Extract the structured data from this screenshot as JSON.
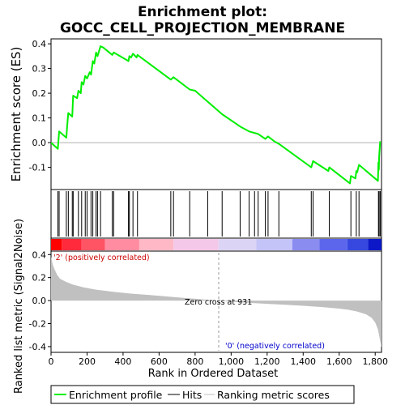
{
  "title_lines": [
    "Enrichment plot:",
    "GOCC_CELL_PROJECTION_MEMBRANE"
  ],
  "labels": {
    "es_ylabel": "Enrichment score (ES)",
    "metric_ylabel": "Ranked list metric (Signal2Noise)",
    "xlabel": "Rank in Ordered Dataset",
    "positive_label": "'2' (positively correlated)",
    "negative_label": "'0' (negatively correlated)",
    "zero_cross": "Zero cross at 931"
  },
  "legend": {
    "enrichment": "Enrichment profile",
    "hits": "Hits",
    "ranking": "Ranking metric scores"
  },
  "colors": {
    "enrichment_line": "#00ee00",
    "hits": "#000000",
    "metric_fill": "#c0c0c0",
    "positive_text": "#cc0000",
    "negative_text": "#0000cc"
  },
  "chart_data": {
    "type": "line",
    "x_ticks": [
      "0",
      "200",
      "400",
      "600",
      "800",
      "1,000",
      "1,200",
      "1,400",
      "1,600",
      "1,800"
    ],
    "x_tick_values": [
      0,
      200,
      400,
      600,
      800,
      1000,
      1200,
      1400,
      1600,
      1800
    ],
    "xlim": [
      0,
      1835
    ],
    "es_yticks": [
      "0.4",
      "0.3",
      "0.2",
      "0.1",
      "0.0",
      "-0.1"
    ],
    "es_ytick_values": [
      0.4,
      0.3,
      0.2,
      0.1,
      0.0,
      -0.1
    ],
    "es_ylim": [
      -0.19,
      0.42
    ],
    "metric_yticks": [
      "0.4",
      "0.2",
      "0.0",
      "-0.2",
      "-0.4"
    ],
    "metric_ytick_values": [
      0.4,
      0.2,
      0.0,
      -0.2,
      -0.4
    ],
    "metric_ylim": [
      -0.45,
      0.43
    ],
    "zero_cross_rank": 931,
    "enrichment_profile": {
      "x": [
        0,
        38,
        45,
        85,
        90,
        96,
        118,
        123,
        145,
        152,
        165,
        170,
        180,
        190,
        200,
        215,
        222,
        232,
        240,
        250,
        258,
        275,
        290,
        340,
        348,
        430,
        435,
        445,
        455,
        475,
        480,
        665,
        680,
        770,
        800,
        950,
        1050,
        1100,
        1150,
        1190,
        1205,
        1240,
        1265,
        1445,
        1455,
        1540,
        1545,
        1660,
        1665,
        1690,
        1695,
        1700,
        1710,
        1815,
        1818,
        1820,
        1822,
        1828
      ],
      "y": [
        0.0,
        -0.025,
        0.045,
        0.02,
        0.07,
        0.12,
        0.105,
        0.19,
        0.18,
        0.21,
        0.2,
        0.245,
        0.235,
        0.27,
        0.26,
        0.285,
        0.275,
        0.33,
        0.32,
        0.365,
        0.35,
        0.39,
        0.385,
        0.355,
        0.365,
        0.33,
        0.35,
        0.345,
        0.36,
        0.345,
        0.355,
        0.255,
        0.265,
        0.215,
        0.21,
        0.115,
        0.065,
        0.045,
        0.035,
        0.015,
        0.025,
        0.005,
        -0.005,
        -0.1,
        -0.075,
        -0.115,
        -0.1,
        -0.165,
        -0.135,
        -0.145,
        -0.115,
        -0.12,
        -0.09,
        -0.155,
        -0.08,
        -0.11,
        -0.055,
        0.005
      ]
    },
    "hit_ranks": [
      38,
      45,
      85,
      96,
      118,
      123,
      152,
      170,
      190,
      200,
      222,
      232,
      250,
      258,
      275,
      340,
      348,
      430,
      435,
      455,
      480,
      665,
      680,
      770,
      870,
      950,
      1050,
      1100,
      1130,
      1150,
      1190,
      1205,
      1265,
      1445,
      1455,
      1545,
      1665,
      1695,
      1710,
      1818,
      1822,
      1828
    ],
    "metric": {
      "x": [
        0,
        10,
        20,
        35,
        50,
        80,
        120,
        180,
        250,
        350,
        450,
        550,
        650,
        750,
        850,
        931,
        1000,
        1100,
        1200,
        1300,
        1400,
        1500,
        1600,
        1650,
        1700,
        1750,
        1780,
        1800,
        1815,
        1825,
        1835
      ],
      "y": [
        0.38,
        0.31,
        0.27,
        0.22,
        0.19,
        0.165,
        0.14,
        0.115,
        0.095,
        0.075,
        0.06,
        0.048,
        0.035,
        0.022,
        0.01,
        0.0,
        -0.01,
        -0.02,
        -0.028,
        -0.036,
        -0.045,
        -0.056,
        -0.07,
        -0.08,
        -0.095,
        -0.12,
        -0.15,
        -0.19,
        -0.25,
        -0.33,
        -0.41
      ]
    },
    "heatmap_bands": [
      {
        "from": 0,
        "to": 60,
        "color": "#ff0000"
      },
      {
        "from": 60,
        "to": 170,
        "color": "#ff2a3c"
      },
      {
        "from": 170,
        "to": 300,
        "color": "#ff5464"
      },
      {
        "from": 300,
        "to": 490,
        "color": "#ff8ca0"
      },
      {
        "from": 490,
        "to": 680,
        "color": "#ffb8c6"
      },
      {
        "from": 680,
        "to": 930,
        "color": "#f4c8e8"
      },
      {
        "from": 930,
        "to": 1140,
        "color": "#dcd4f4"
      },
      {
        "from": 1140,
        "to": 1340,
        "color": "#c4c4f8"
      },
      {
        "from": 1340,
        "to": 1490,
        "color": "#8a8cf0"
      },
      {
        "from": 1490,
        "to": 1645,
        "color": "#5c66ec"
      },
      {
        "from": 1645,
        "to": 1760,
        "color": "#3648e0"
      },
      {
        "from": 1760,
        "to": 1835,
        "color": "#0c18c8"
      }
    ]
  }
}
